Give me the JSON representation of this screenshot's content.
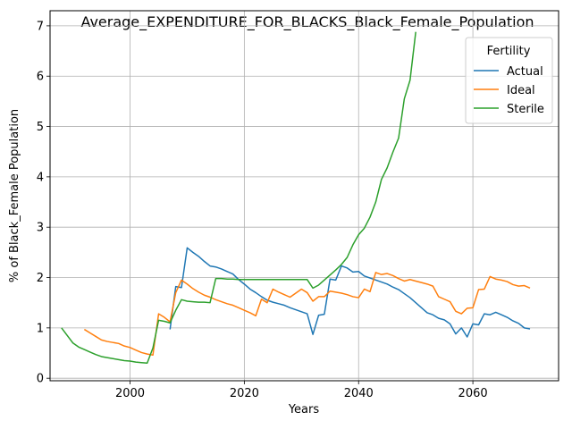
{
  "chart_data": {
    "type": "line",
    "title": "Average_EXPENDITURE_FOR_BLACKS_Black_Female_Population",
    "xlabel": "Years",
    "ylabel": "% of Black_Female Population",
    "xlim": [
      1986,
      2075
    ],
    "ylim": [
      -0.05,
      7.3
    ],
    "xticks": [
      2000,
      2020,
      2040,
      2060
    ],
    "yticks": [
      0,
      1,
      2,
      3,
      4,
      5,
      6,
      7
    ],
    "grid": true,
    "legend": {
      "title": "Fertility",
      "placement": "top-right"
    },
    "series": [
      {
        "name": "Actual",
        "color": "#1f77b4",
        "x": [
          2007,
          2008,
          2009,
          2010,
          2011,
          2012,
          2013,
          2014,
          2015,
          2016,
          2017,
          2018,
          2019,
          2020,
          2021,
          2022,
          2023,
          2024,
          2025,
          2026,
          2027,
          2028,
          2029,
          2030,
          2031,
          2032,
          2033,
          2034,
          2035,
          2036,
          2037,
          2038,
          2039,
          2040,
          2041,
          2042,
          2043,
          2044,
          2045,
          2046,
          2047,
          2048,
          2049,
          2050,
          2051,
          2052,
          2053,
          2054,
          2055,
          2056,
          2057,
          2058,
          2059,
          2060,
          2061,
          2062,
          2063,
          2064,
          2065,
          2066,
          2067,
          2068,
          2069,
          2070
        ],
        "y": [
          0.97,
          1.82,
          1.8,
          2.59,
          2.5,
          2.42,
          2.32,
          2.23,
          2.21,
          2.17,
          2.12,
          2.07,
          1.96,
          1.87,
          1.77,
          1.7,
          1.62,
          1.55,
          1.51,
          1.48,
          1.45,
          1.4,
          1.36,
          1.32,
          1.28,
          0.87,
          1.25,
          1.27,
          1.97,
          1.95,
          2.23,
          2.19,
          2.11,
          2.12,
          2.03,
          1.99,
          1.95,
          1.91,
          1.87,
          1.81,
          1.76,
          1.68,
          1.6,
          1.5,
          1.4,
          1.3,
          1.26,
          1.19,
          1.16,
          1.08,
          0.88,
          1.0,
          0.82,
          1.08,
          1.06,
          1.28,
          1.26,
          1.31,
          1.26,
          1.21,
          1.14,
          1.09,
          1.0,
          0.98
        ]
      },
      {
        "name": "Ideal",
        "color": "#ff7f0e",
        "x": [
          1992,
          1993,
          1994,
          1995,
          1996,
          1997,
          1998,
          1999,
          2000,
          2001,
          2002,
          2003,
          2004,
          2005,
          2006,
          2007,
          2008,
          2009,
          2010,
          2011,
          2012,
          2013,
          2014,
          2015,
          2016,
          2017,
          2018,
          2019,
          2020,
          2021,
          2022,
          2023,
          2024,
          2025,
          2026,
          2027,
          2028,
          2029,
          2030,
          2031,
          2032,
          2033,
          2034,
          2035,
          2036,
          2037,
          2038,
          2039,
          2040,
          2041,
          2042,
          2043,
          2044,
          2045,
          2046,
          2047,
          2048,
          2049,
          2050,
          2051,
          2052,
          2053,
          2054,
          2055,
          2056,
          2057,
          2058,
          2059,
          2060,
          2061,
          2062,
          2063,
          2064,
          2065,
          2066,
          2067,
          2068,
          2069,
          2070
        ],
        "y": [
          0.97,
          0.9,
          0.83,
          0.76,
          0.73,
          0.71,
          0.69,
          0.64,
          0.61,
          0.56,
          0.51,
          0.48,
          0.46,
          1.28,
          1.21,
          1.12,
          1.7,
          1.95,
          1.87,
          1.78,
          1.71,
          1.65,
          1.61,
          1.56,
          1.52,
          1.48,
          1.45,
          1.4,
          1.35,
          1.3,
          1.24,
          1.57,
          1.5,
          1.77,
          1.71,
          1.66,
          1.61,
          1.69,
          1.77,
          1.7,
          1.53,
          1.62,
          1.62,
          1.73,
          1.71,
          1.69,
          1.66,
          1.62,
          1.6,
          1.77,
          1.72,
          2.1,
          2.06,
          2.08,
          2.04,
          1.98,
          1.93,
          1.96,
          1.93,
          1.9,
          1.87,
          1.83,
          1.62,
          1.57,
          1.52,
          1.33,
          1.28,
          1.39,
          1.4,
          1.76,
          1.77,
          2.02,
          1.97,
          1.95,
          1.92,
          1.86,
          1.83,
          1.84,
          1.79
        ]
      },
      {
        "name": "Sterile",
        "color": "#2ca02c",
        "x": [
          1988,
          1989,
          1990,
          1991,
          1992,
          1993,
          1994,
          1995,
          1996,
          1997,
          1998,
          1999,
          2000,
          2001,
          2002,
          2003,
          2004,
          2005,
          2006,
          2007,
          2008,
          2009,
          2010,
          2011,
          2012,
          2013,
          2014,
          2015,
          2016,
          2017,
          2018,
          2019,
          2020,
          2021,
          2022,
          2023,
          2024,
          2025,
          2026,
          2027,
          2028,
          2029,
          2030,
          2031,
          2032,
          2033,
          2034,
          2035,
          2036,
          2037,
          2038,
          2039,
          2040,
          2041,
          2042,
          2043,
          2044,
          2045,
          2046,
          2047,
          2048,
          2049,
          2050
        ],
        "y": [
          1.0,
          0.85,
          0.7,
          0.62,
          0.57,
          0.52,
          0.47,
          0.43,
          0.41,
          0.39,
          0.37,
          0.35,
          0.34,
          0.32,
          0.31,
          0.3,
          0.6,
          1.15,
          1.13,
          1.1,
          1.35,
          1.56,
          1.53,
          1.52,
          1.51,
          1.51,
          1.5,
          1.98,
          1.98,
          1.97,
          1.97,
          1.96,
          1.96,
          1.96,
          1.96,
          1.96,
          1.96,
          1.96,
          1.96,
          1.96,
          1.96,
          1.96,
          1.96,
          1.96,
          1.79,
          1.85,
          1.95,
          2.05,
          2.15,
          2.26,
          2.4,
          2.65,
          2.85,
          2.98,
          3.2,
          3.5,
          3.95,
          4.18,
          4.49,
          4.77,
          5.55,
          5.92,
          6.88
        ]
      }
    ]
  }
}
